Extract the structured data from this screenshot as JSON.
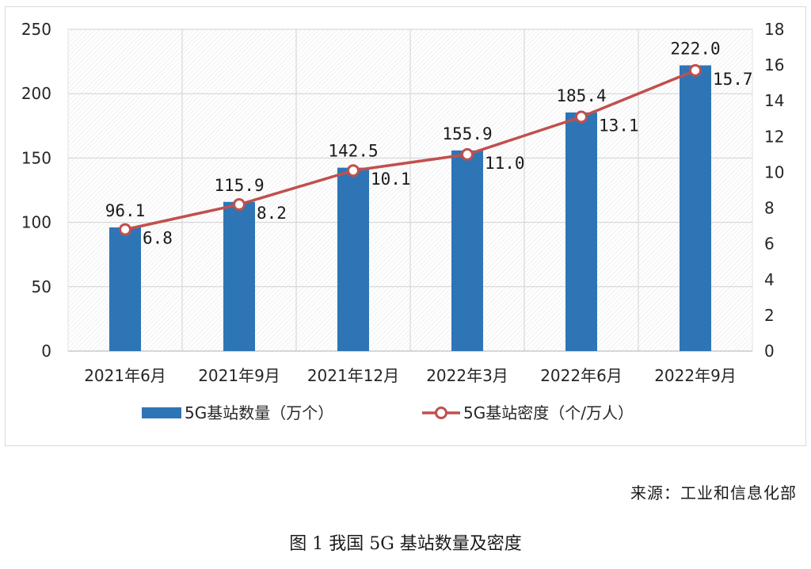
{
  "chart_data": {
    "type": "bar",
    "categories": [
      "2021年6月",
      "2021年9月",
      "2021年12月",
      "2022年3月",
      "2022年6月",
      "2022年9月"
    ],
    "series": [
      {
        "name": "5G基站数量（万个）",
        "type": "bar",
        "axis": "left",
        "color": "#2e75b6",
        "values": [
          96.1,
          115.9,
          142.5,
          155.9,
          185.4,
          222.0
        ],
        "labels": [
          "96.1",
          "115.9",
          "142.5",
          "155.9",
          "185.4",
          "222.0"
        ]
      },
      {
        "name": "5G基站密度（个/万人）",
        "type": "line",
        "axis": "right",
        "color": "#c0504d",
        "values": [
          6.8,
          8.2,
          10.1,
          11.0,
          13.1,
          15.7
        ],
        "labels": [
          "6.8",
          "8.2",
          "10.1",
          "11.0",
          "13.1",
          "15.7"
        ]
      }
    ],
    "y_left": {
      "min": 0,
      "max": 250,
      "ticks": [
        "0",
        "50",
        "100",
        "150",
        "200",
        "250"
      ]
    },
    "y_right": {
      "min": 0,
      "max": 18,
      "ticks": [
        "0",
        "2",
        "4",
        "6",
        "8",
        "10",
        "12",
        "14",
        "16",
        "18"
      ]
    },
    "grid": true,
    "legend_position": "bottom"
  },
  "source_note": "来源：工业和信息化部",
  "caption": "图 1 我国 5G 基站数量及密度"
}
